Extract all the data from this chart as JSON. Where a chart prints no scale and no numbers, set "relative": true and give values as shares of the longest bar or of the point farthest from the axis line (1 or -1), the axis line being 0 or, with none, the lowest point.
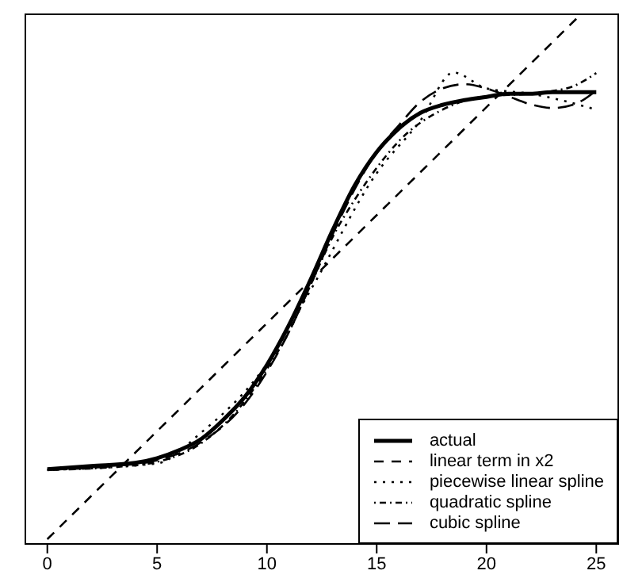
{
  "chart_data": {
    "type": "line",
    "relative": true,
    "xlim": [
      -1,
      26
    ],
    "xticks": [
      0,
      5,
      10,
      15,
      20,
      25
    ],
    "tick_labels": "x",
    "legend": "bottom right",
    "marker": "none",
    "series": [
      {
        "name": "actual",
        "color": "#000000",
        "line_style": "solid",
        "x": [
          0,
          2,
          4,
          5,
          6,
          7,
          8,
          9,
          10,
          11,
          12,
          13,
          14,
          15,
          16,
          17,
          18,
          19,
          20,
          21,
          22,
          23,
          24,
          25
        ],
        "values": [
          0.141,
          0.147,
          0.153,
          0.162,
          0.177,
          0.198,
          0.234,
          0.278,
          0.338,
          0.413,
          0.5,
          0.593,
          0.677,
          0.74,
          0.784,
          0.814,
          0.829,
          0.838,
          0.844,
          0.85,
          0.85,
          0.853,
          0.853,
          0.853
        ]
      },
      {
        "name": "linear term in x2",
        "color": "#000000",
        "line_style": "dashed",
        "x": [
          0,
          24.3
        ],
        "values": [
          0.009,
          1
        ]
      },
      {
        "name": "piecewise linear spline",
        "color": "#000000",
        "line_style": "dotted",
        "x": [
          0,
          5,
          7,
          10,
          12,
          15,
          17,
          18.5,
          20,
          22,
          25
        ],
        "values": [
          0.14,
          0.152,
          0.21,
          0.34,
          0.48,
          0.7,
          0.8,
          0.89,
          0.86,
          0.85,
          0.82
        ]
      },
      {
        "name": "quadratic spline",
        "color": "#000000",
        "line_style": "dashdot",
        "x": [
          0,
          3,
          5,
          7,
          9,
          10,
          11,
          12,
          13,
          14,
          15,
          16,
          18,
          20,
          22,
          23,
          24,
          25
        ],
        "values": [
          0.14,
          0.145,
          0.155,
          0.19,
          0.27,
          0.33,
          0.4,
          0.49,
          0.58,
          0.65,
          0.71,
          0.76,
          0.82,
          0.845,
          0.85,
          0.855,
          0.865,
          0.889
        ]
      },
      {
        "name": "cubic spline",
        "color": "#000000",
        "line_style": "longdash",
        "x": [
          0,
          3,
          5,
          7,
          9,
          10,
          11,
          12,
          13,
          14,
          15,
          16,
          17,
          18,
          19,
          20,
          21,
          22,
          23,
          24,
          25
        ],
        "values": [
          0.14,
          0.147,
          0.158,
          0.192,
          0.265,
          0.325,
          0.4,
          0.49,
          0.585,
          0.67,
          0.74,
          0.79,
          0.835,
          0.86,
          0.868,
          0.86,
          0.845,
          0.83,
          0.823,
          0.83,
          0.856
        ]
      }
    ]
  }
}
